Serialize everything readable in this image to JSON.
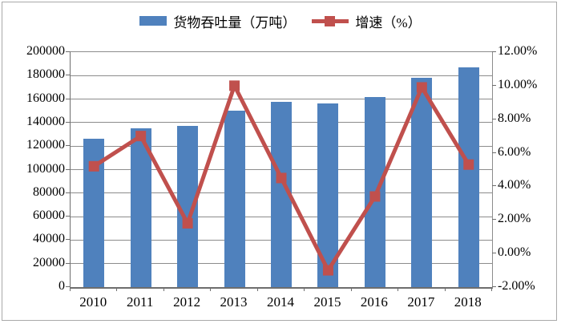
{
  "frame": {
    "background_color": "#ffffff",
    "border_color": "#a9a9a9"
  },
  "legend": {
    "position": "top-center",
    "items": [
      {
        "label": "货物吞吐量（万吨）",
        "swatch": "bar",
        "color": "#4F81BD"
      },
      {
        "label": "增速（%）",
        "swatch": "line-with-square-marker",
        "color": "#C0504D"
      }
    ]
  },
  "chart_data": {
    "type": "bar+line combo",
    "title": "",
    "categories": [
      "2010",
      "2011",
      "2012",
      "2013",
      "2014",
      "2015",
      "2016",
      "2017",
      "2018"
    ],
    "series": [
      {
        "name": "货物吞吐量（万吨）",
        "type": "bar",
        "axis": "left",
        "color": "#4F81BD",
        "values": [
          126500,
          135000,
          137500,
          150500,
          157500,
          156000,
          162000,
          178000,
          187000
        ]
      },
      {
        "name": "增速（%）",
        "type": "line",
        "axis": "right",
        "color": "#C0504D",
        "marker": "square",
        "values": [
          5.2,
          7.0,
          1.8,
          10.0,
          4.5,
          -1.0,
          3.4,
          9.9,
          5.3
        ]
      }
    ],
    "axes": {
      "left": {
        "min": 0,
        "max": 200000,
        "step": 20000,
        "tick_labels": [
          "0",
          "20000",
          "40000",
          "60000",
          "80000",
          "100000",
          "120000",
          "140000",
          "160000",
          "180000",
          "200000"
        ]
      },
      "right": {
        "min": -2,
        "max": 12,
        "step": 2,
        "tick_labels": [
          "-2.00%",
          "0.00%",
          "2.00%",
          "4.00%",
          "6.00%",
          "8.00%",
          "10.00%",
          "12.00%"
        ]
      },
      "x": {
        "tick_labels": [
          "2010",
          "2011",
          "2012",
          "2013",
          "2014",
          "2015",
          "2016",
          "2017",
          "2018"
        ]
      }
    },
    "grid": true,
    "gridline_color": "#8c8c8c",
    "axis_line_color": "#6e6e6e",
    "legend_position": "top"
  }
}
